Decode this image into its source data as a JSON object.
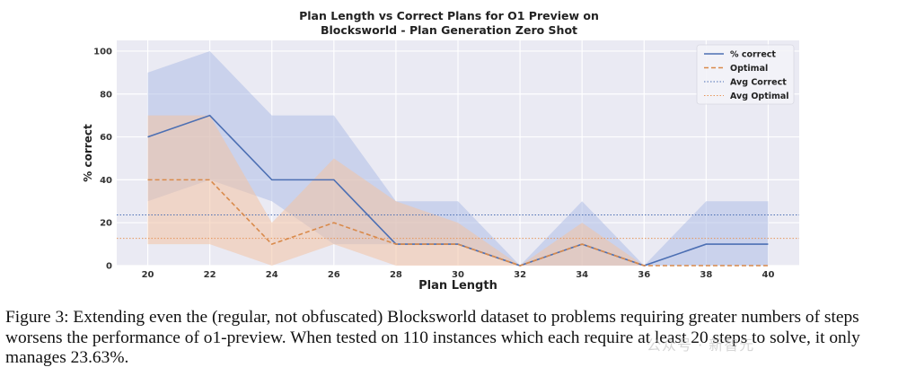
{
  "chart_data": {
    "type": "line",
    "title_line1": "Plan Length vs Correct Plans for O1 Preview on",
    "title_line2": "Blocksworld - Plan Generation Zero Shot",
    "xlabel": "Plan Length",
    "ylabel": "% correct",
    "x": [
      20,
      22,
      24,
      26,
      28,
      30,
      32,
      34,
      36,
      38,
      40
    ],
    "xticks": [
      "20",
      "22",
      "24",
      "26",
      "28",
      "30",
      "32",
      "34",
      "36",
      "38",
      "40"
    ],
    "yticks": [
      "0",
      "20",
      "40",
      "60",
      "80",
      "100"
    ],
    "xlim": [
      19,
      41
    ],
    "ylim": [
      0,
      105
    ],
    "grid": true,
    "legend_position": "top-right",
    "series": [
      {
        "name": "% correct",
        "style": "solid",
        "color": "#4c6fb3",
        "values": [
          60,
          70,
          40,
          40,
          10,
          10,
          0,
          10,
          0,
          10,
          10
        ],
        "band_low": [
          30,
          40,
          30,
          10,
          10,
          10,
          0,
          0,
          0,
          0,
          0
        ],
        "band_high": [
          90,
          100,
          70,
          70,
          30,
          30,
          0,
          30,
          0,
          30,
          30
        ],
        "band_color": "#aebde6"
      },
      {
        "name": "Optimal",
        "style": "dashed",
        "color": "#d98a4b",
        "values": [
          40,
          40,
          10,
          20,
          10,
          10,
          0,
          10,
          0,
          0,
          0
        ],
        "band_low": [
          10,
          10,
          0,
          10,
          0,
          0,
          0,
          0,
          0,
          0,
          0
        ],
        "band_high": [
          70,
          70,
          20,
          50,
          30,
          20,
          0,
          20,
          0,
          0,
          0
        ],
        "band_color": "#f3c3a4"
      }
    ],
    "hlines": [
      {
        "name": "Avg Correct",
        "value": 23.63,
        "color": "#4c6fb3",
        "style": "dotted"
      },
      {
        "name": "Avg Optimal",
        "value": 12.7,
        "color": "#e6955a",
        "style": "dotted"
      }
    ],
    "colors": {
      "plot_background": "#eaeaf3",
      "grid": "#ffffff",
      "axis_text": "#333333"
    }
  },
  "caption": "Figure 3: Extending even the (regular, not obfuscated) Blocksworld dataset to problems requiring greater numbers of steps worsens the performance of o1-preview. When tested on 110 instances which each require at least 20 steps to solve, it only manages 23.63%.",
  "watermark": "公众号 · 新智元"
}
